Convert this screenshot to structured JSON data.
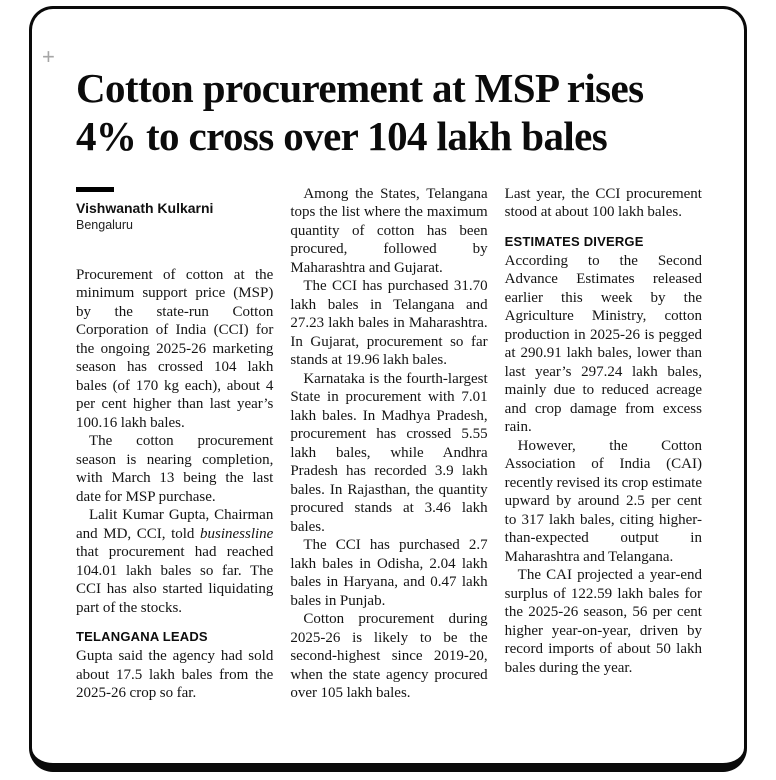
{
  "frame": {
    "plus_glyph": "+"
  },
  "article": {
    "headline": "Cotton procurement at MSP rises 4% to cross over 104 lakh bales",
    "byline": {
      "author": "Vishwanath Kulkarni",
      "location": "Bengaluru"
    },
    "sections": {
      "telangana": "TELANGANA LEADS",
      "estimates": "ESTIMATES DIVERGE"
    },
    "col1": {
      "p1": "Procurement of cotton at the minimum support price (MSP) by the state-run Cotton Corporation of India (CCI) for the ongoing 2025-26 marketing season has crossed 104 lakh bales (of 170 kg each), about 4 per cent higher than last year’s 100.16 lakh bales.",
      "p2": "The cotton procurement season is nearing completion, with March 13 being the last date for MSP purchase.",
      "p3a": "Lalit Kumar Gupta, Chairman and MD, CCI, told ",
      "p3_italic": "businessline",
      "p3b": " that procurement had reached 104.01 lakh bales so far. The CCI has also started liquidating part of the stocks.",
      "p4": "Gupta said the agency had sold about 17.5 lakh bales from the 2025-26 crop so far."
    },
    "col2": {
      "p1": "Among the States, Telangana tops the list where the maximum quantity of cotton has been procured, followed by Maharashtra and Gujarat.",
      "p2": "The CCI has purchased 31.70 lakh bales in Telangana and 27.23 lakh bales in Maharashtra. In Gujarat, procurement so far stands at 19.96 lakh bales.",
      "p3": "Karnataka is the fourth-largest State in procurement with 7.01 lakh bales. In Madhya Pradesh, procurement has crossed 5.55 lakh bales, while Andhra Pradesh has recorded 3.9 lakh bales. In Rajasthan, the quantity procured stands at 3.46 lakh bales.",
      "p4": "The CCI has purchased 2.7 lakh bales in Odisha, 2.04 lakh bales in Haryana, and 0.47 lakh bales in Punjab.",
      "p5": "Cotton procurement during 2025-26 is likely to be the second-highest since 2019-20, when the state agency procured over 105 lakh bales."
    },
    "col3": {
      "p1": "Last year, the CCI procurement stood at about 100 lakh bales.",
      "p2": "According to the Second Advance Estimates released earlier this week by the Agriculture Ministry, cotton production in 2025-26 is pegged at 290.91 lakh bales, lower than last year’s 297.24 lakh bales, mainly due to reduced acreage and crop damage from excess rain.",
      "p3": "However, the Cotton Association of India (CAI) recently revised its crop estimate upward by around 2.5 per cent to 317 lakh bales, citing higher-than-expected output in Maharashtra and Telangana.",
      "p4": "The CAI projected a year-end surplus of 122.59 lakh bales for the 2025-26 season, 56 per cent higher year-on-year, driven by record imports of about 50 lakh bales during the year."
    }
  }
}
